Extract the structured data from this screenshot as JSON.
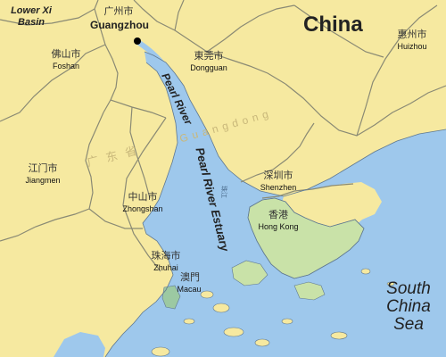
{
  "map": {
    "colors": {
      "land": "#f6e9a0",
      "water": "#9ec8ec",
      "hong_kong": "#c9e2a8",
      "macau": "#9cc9a2",
      "border": "#8a8a74",
      "coast": "#5f7890"
    },
    "country": "China",
    "region": {
      "en": "Guangdong",
      "cn": "广东省"
    },
    "basin": "Lower Xi Basin",
    "river": "Pearl River",
    "estuary": "Pearl River Estuary",
    "estuary_cn": "珠江",
    "sea": "South China Sea",
    "cities": {
      "guangzhou": {
        "cn": "广州市",
        "en": "Guangzhou"
      },
      "foshan": {
        "cn": "佛山市",
        "en": "Foshan"
      },
      "dongguan": {
        "cn": "東莞市",
        "en": "Dongguan"
      },
      "huizhou": {
        "cn": "惠州市",
        "en": "Huizhou"
      },
      "jiangmen": {
        "cn": "江门市",
        "en": "Jiangmen"
      },
      "zhongshan": {
        "cn": "中山市",
        "en": "Zhongshan"
      },
      "shenzhen": {
        "cn": "深圳市",
        "en": "Shenzhen"
      },
      "hong_kong": {
        "cn": "香港",
        "en": "Hong Kong"
      },
      "zhuhai": {
        "cn": "珠海市",
        "en": "Zhuhai"
      },
      "macau": {
        "cn": "澳門",
        "en": "Macau"
      }
    }
  }
}
